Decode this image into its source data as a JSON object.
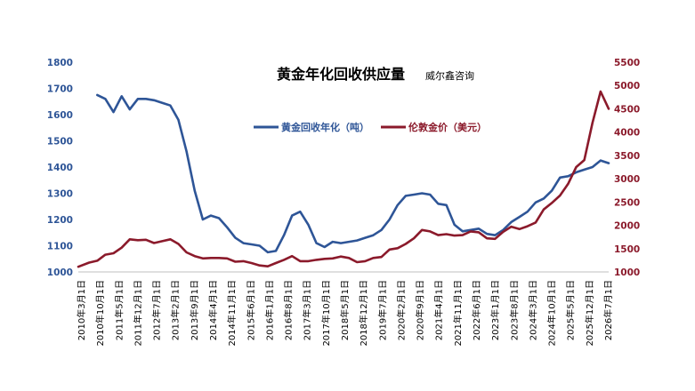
{
  "chart_data": {
    "type": "line",
    "title": "黄金年化回收供应量",
    "subtitle": "威尔鑫咨询",
    "x_labels": [
      "2010年3月1日",
      "2010年10月1日",
      "2011年5月1日",
      "2011年12月1日",
      "2012年7月1日",
      "2013年2月1日",
      "2013年9月1日",
      "2014年4月1日",
      "2014年11月1日",
      "2015年6月1日",
      "2016年1月1日",
      "2016年8月1日",
      "2017年3月1日",
      "2017年10月1日",
      "2018年5月1日",
      "2018年12月1日",
      "2019年7月1日",
      "2020年2月1日",
      "2020年9月1日",
      "2021年4月1日",
      "2021年11月1日",
      "2022年6月1日",
      "2023年1月1日",
      "2023年8月1日",
      "2024年3月1日",
      "2024年10月1日",
      "2025年5月1日",
      "2025年12月1日",
      "2026年7月1日"
    ],
    "x_range": [
      2010.1667,
      2026.5
    ],
    "y_left": {
      "ylim": [
        1000,
        1800
      ],
      "ticks": [
        1000,
        1100,
        1200,
        1300,
        1400,
        1500,
        1600,
        1700,
        1800
      ]
    },
    "y_right": {
      "ylim": [
        1000,
        5500
      ],
      "ticks": [
        1000,
        1500,
        2000,
        2500,
        3000,
        3500,
        4000,
        4500,
        5000,
        5500
      ]
    },
    "grid": false,
    "legend_position": "top-center",
    "series": [
      {
        "name": "黄金回收年化（吨）",
        "axis": "left",
        "color": "#2E5597",
        "points": [
          [
            2010.75,
            1675
          ],
          [
            2011.0,
            1660
          ],
          [
            2011.25,
            1610
          ],
          [
            2011.5,
            1670
          ],
          [
            2011.75,
            1620
          ],
          [
            2012.0,
            1660
          ],
          [
            2012.25,
            1660
          ],
          [
            2012.5,
            1655
          ],
          [
            2012.75,
            1645
          ],
          [
            2013.0,
            1635
          ],
          [
            2013.25,
            1580
          ],
          [
            2013.5,
            1460
          ],
          [
            2013.75,
            1310
          ],
          [
            2014.0,
            1200
          ],
          [
            2014.25,
            1215
          ],
          [
            2014.5,
            1205
          ],
          [
            2014.75,
            1170
          ],
          [
            2015.0,
            1130
          ],
          [
            2015.25,
            1110
          ],
          [
            2015.5,
            1105
          ],
          [
            2015.75,
            1100
          ],
          [
            2016.0,
            1075
          ],
          [
            2016.25,
            1080
          ],
          [
            2016.5,
            1140
          ],
          [
            2016.75,
            1215
          ],
          [
            2017.0,
            1230
          ],
          [
            2017.25,
            1180
          ],
          [
            2017.5,
            1110
          ],
          [
            2017.75,
            1095
          ],
          [
            2018.0,
            1115
          ],
          [
            2018.25,
            1110
          ],
          [
            2018.5,
            1115
          ],
          [
            2018.75,
            1120
          ],
          [
            2019.0,
            1130
          ],
          [
            2019.25,
            1140
          ],
          [
            2019.5,
            1160
          ],
          [
            2019.75,
            1200
          ],
          [
            2020.0,
            1255
          ],
          [
            2020.25,
            1290
          ],
          [
            2020.5,
            1295
          ],
          [
            2020.75,
            1300
          ],
          [
            2021.0,
            1295
          ],
          [
            2021.25,
            1260
          ],
          [
            2021.5,
            1255
          ],
          [
            2021.75,
            1180
          ],
          [
            2022.0,
            1155
          ],
          [
            2022.25,
            1160
          ],
          [
            2022.5,
            1165
          ],
          [
            2022.75,
            1145
          ],
          [
            2023.0,
            1140
          ],
          [
            2023.25,
            1160
          ],
          [
            2023.5,
            1190
          ],
          [
            2023.75,
            1210
          ],
          [
            2024.0,
            1230
          ],
          [
            2024.25,
            1265
          ],
          [
            2024.5,
            1280
          ],
          [
            2024.75,
            1310
          ],
          [
            2025.0,
            1360
          ],
          [
            2025.25,
            1365
          ],
          [
            2025.5,
            1380
          ],
          [
            2025.75,
            1390
          ],
          [
            2026.0,
            1400
          ],
          [
            2026.25,
            1425
          ],
          [
            2026.5,
            1415
          ]
        ]
      },
      {
        "name": "伦敦金价（美元）",
        "axis": "right",
        "color": "#8B1A2B",
        "points": [
          [
            2010.1667,
            1110
          ],
          [
            2010.5,
            1200
          ],
          [
            2010.75,
            1240
          ],
          [
            2011.0,
            1370
          ],
          [
            2011.25,
            1400
          ],
          [
            2011.5,
            1520
          ],
          [
            2011.75,
            1700
          ],
          [
            2012.0,
            1680
          ],
          [
            2012.25,
            1690
          ],
          [
            2012.5,
            1620
          ],
          [
            2012.75,
            1660
          ],
          [
            2013.0,
            1700
          ],
          [
            2013.25,
            1600
          ],
          [
            2013.5,
            1420
          ],
          [
            2013.75,
            1340
          ],
          [
            2014.0,
            1290
          ],
          [
            2014.25,
            1300
          ],
          [
            2014.5,
            1300
          ],
          [
            2014.75,
            1290
          ],
          [
            2015.0,
            1220
          ],
          [
            2015.25,
            1230
          ],
          [
            2015.5,
            1190
          ],
          [
            2015.75,
            1140
          ],
          [
            2016.0,
            1120
          ],
          [
            2016.25,
            1190
          ],
          [
            2016.5,
            1260
          ],
          [
            2016.75,
            1340
          ],
          [
            2017.0,
            1230
          ],
          [
            2017.25,
            1230
          ],
          [
            2017.5,
            1260
          ],
          [
            2017.75,
            1280
          ],
          [
            2018.0,
            1290
          ],
          [
            2018.25,
            1330
          ],
          [
            2018.5,
            1300
          ],
          [
            2018.75,
            1210
          ],
          [
            2019.0,
            1230
          ],
          [
            2019.25,
            1300
          ],
          [
            2019.5,
            1320
          ],
          [
            2019.75,
            1480
          ],
          [
            2020.0,
            1510
          ],
          [
            2020.25,
            1600
          ],
          [
            2020.5,
            1720
          ],
          [
            2020.75,
            1900
          ],
          [
            2021.0,
            1870
          ],
          [
            2021.25,
            1790
          ],
          [
            2021.5,
            1810
          ],
          [
            2021.75,
            1780
          ],
          [
            2022.0,
            1790
          ],
          [
            2022.25,
            1870
          ],
          [
            2022.5,
            1850
          ],
          [
            2022.75,
            1720
          ],
          [
            2023.0,
            1710
          ],
          [
            2023.25,
            1860
          ],
          [
            2023.5,
            1970
          ],
          [
            2023.75,
            1920
          ],
          [
            2024.0,
            1980
          ],
          [
            2024.25,
            2060
          ],
          [
            2024.5,
            2340
          ],
          [
            2024.75,
            2480
          ],
          [
            2025.0,
            2640
          ],
          [
            2025.25,
            2890
          ],
          [
            2025.5,
            3250
          ],
          [
            2025.75,
            3400
          ],
          [
            2026.0,
            4200
          ],
          [
            2026.25,
            4870
          ],
          [
            2026.5,
            4500
          ]
        ]
      }
    ]
  }
}
